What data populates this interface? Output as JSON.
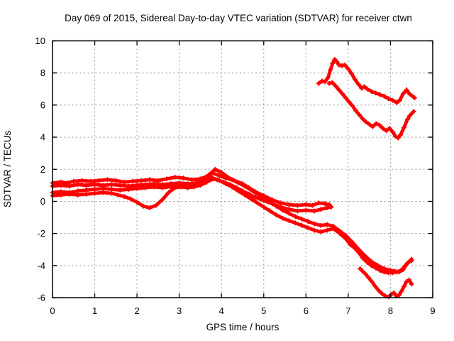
{
  "chart_data": {
    "type": "scatter",
    "title": "Day 069 of 2015, Sidereal Day-to-day VTEC variation (SDTVAR) for receiver ctwn",
    "xlabel": "GPS time / hours",
    "ylabel": "SDTVAR / TECUs",
    "xlim": [
      0,
      9
    ],
    "ylim": [
      -6,
      10
    ],
    "xticks": [
      0,
      1,
      2,
      3,
      4,
      5,
      6,
      7,
      8,
      9
    ],
    "yticks": [
      -6,
      -4,
      -2,
      0,
      2,
      4,
      6,
      8,
      10
    ],
    "grid": "dotted",
    "legend_position": "none",
    "marker": "plus",
    "series_color": "#ff0000",
    "grid_color": "#9c9c9c",
    "series": [
      {
        "name": "trace-1",
        "segments": [
          [
            [
              0,
              0.55
            ],
            [
              0.2,
              0.6
            ],
            [
              0.4,
              0.55
            ],
            [
              0.6,
              0.65
            ],
            [
              0.8,
              0.7
            ],
            [
              1,
              0.75
            ],
            [
              1.2,
              0.8
            ],
            [
              1.4,
              0.75
            ],
            [
              1.6,
              0.7
            ],
            [
              1.8,
              0.75
            ],
            [
              2,
              0.8
            ],
            [
              2.2,
              0.85
            ],
            [
              2.4,
              0.9
            ],
            [
              2.6,
              0.85
            ],
            [
              2.8,
              0.92
            ],
            [
              3,
              1
            ],
            [
              3.2,
              0.95
            ],
            [
              3.4,
              1.05
            ],
            [
              3.55,
              1.25
            ],
            [
              3.7,
              1.65
            ],
            [
              3.85,
              2.0
            ],
            [
              4,
              1.8
            ],
            [
              4.1,
              1.6
            ],
            [
              4.25,
              1.35
            ],
            [
              4.4,
              1.15
            ],
            [
              4.55,
              0.95
            ],
            [
              4.7,
              0.7
            ],
            [
              4.85,
              0.45
            ],
            [
              5,
              0.2
            ],
            [
              5.15,
              -0.05
            ],
            [
              5.3,
              -0.3
            ],
            [
              5.45,
              -0.55
            ],
            [
              5.6,
              -0.75
            ],
            [
              5.75,
              -0.95
            ],
            [
              5.9,
              -1.1
            ],
            [
              6.05,
              -1.25
            ],
            [
              6.2,
              -1.4
            ],
            [
              6.35,
              -1.5
            ],
            [
              6.5,
              -1.45
            ],
            [
              6.65,
              -1.55
            ],
            [
              6.8,
              -1.85
            ],
            [
              6.95,
              -2.15
            ],
            [
              7.1,
              -2.55
            ],
            [
              7.25,
              -3.0
            ],
            [
              7.4,
              -3.4
            ],
            [
              7.55,
              -3.75
            ],
            [
              7.7,
              -4.0
            ],
            [
              7.85,
              -4.2
            ],
            [
              8,
              -4.3
            ],
            [
              8.1,
              -4.35
            ],
            [
              8.2,
              -4.4
            ],
            [
              8.3,
              -4.25
            ],
            [
              8.4,
              -3.85
            ],
            [
              8.5,
              -3.6
            ]
          ]
        ]
      },
      {
        "name": "trace-2",
        "segments": [
          [
            [
              0,
              1.15
            ],
            [
              0.2,
              1.2
            ],
            [
              0.35,
              1.15
            ],
            [
              0.5,
              1.25
            ],
            [
              0.7,
              1.3
            ],
            [
              0.9,
              1.25
            ],
            [
              1.1,
              1.3
            ],
            [
              1.3,
              1.35
            ],
            [
              1.5,
              1.3
            ],
            [
              1.7,
              1.2
            ],
            [
              1.9,
              1.25
            ],
            [
              2.1,
              1.3
            ],
            [
              2.3,
              1.35
            ],
            [
              2.5,
              1.3
            ],
            [
              2.7,
              1.4
            ],
            [
              2.9,
              1.5
            ],
            [
              3.1,
              1.45
            ],
            [
              3.3,
              1.35
            ],
            [
              3.5,
              1.4
            ],
            [
              3.65,
              1.55
            ],
            [
              3.8,
              1.75
            ],
            [
              3.95,
              1.6
            ],
            [
              4.1,
              1.45
            ],
            [
              4.3,
              1.3
            ],
            [
              4.5,
              1.1
            ],
            [
              4.65,
              0.85
            ],
            [
              4.8,
              0.6
            ],
            [
              5,
              0.35
            ],
            [
              5.2,
              0.1
            ],
            [
              5.4,
              -0.1
            ],
            [
              5.6,
              -0.2
            ],
            [
              5.8,
              -0.25
            ],
            [
              6,
              -0.2
            ],
            [
              6.15,
              -0.25
            ],
            [
              6.3,
              -0.1
            ],
            [
              6.45,
              -0.15
            ],
            [
              6.55,
              -0.2
            ]
          ],
          [
            [
              6.3,
              7.35
            ],
            [
              6.38,
              7.5
            ],
            [
              6.45,
              7.45
            ],
            [
              6.52,
              7.7
            ],
            [
              6.58,
              8.2
            ],
            [
              6.63,
              8.6
            ],
            [
              6.68,
              8.85
            ],
            [
              6.73,
              8.7
            ],
            [
              6.78,
              8.5
            ],
            [
              6.85,
              8.45
            ],
            [
              6.92,
              8.5
            ],
            [
              7,
              8.25
            ],
            [
              7.08,
              7.95
            ],
            [
              7.16,
              7.6
            ],
            [
              7.24,
              7.3
            ],
            [
              7.32,
              7.05
            ],
            [
              7.38,
              7.15
            ],
            [
              7.45,
              7.0
            ],
            [
              7.55,
              6.85
            ],
            [
              7.65,
              6.75
            ],
            [
              7.75,
              6.65
            ],
            [
              7.85,
              6.55
            ],
            [
              7.95,
              6.4
            ],
            [
              8.05,
              6.3
            ],
            [
              8.15,
              6.15
            ],
            [
              8.22,
              6.3
            ],
            [
              8.3,
              6.7
            ],
            [
              8.38,
              6.95
            ],
            [
              8.45,
              6.7
            ],
            [
              8.57,
              6.45
            ]
          ]
        ]
      },
      {
        "name": "trace-3",
        "segments": [
          [
            [
              0,
              0.95
            ],
            [
              0.2,
              1.0
            ],
            [
              0.4,
              0.95
            ],
            [
              0.6,
              1.05
            ],
            [
              0.8,
              1.0
            ],
            [
              1,
              1.05
            ],
            [
              1.2,
              1.0
            ],
            [
              1.4,
              1.05
            ],
            [
              1.6,
              1.0
            ],
            [
              1.8,
              0.95
            ],
            [
              2,
              1.0
            ],
            [
              2.2,
              1.05
            ],
            [
              2.4,
              1.1
            ],
            [
              2.6,
              1.05
            ],
            [
              2.8,
              1.1
            ],
            [
              3,
              1.15
            ],
            [
              3.2,
              1.1
            ],
            [
              3.4,
              1.15
            ],
            [
              3.6,
              1.3
            ],
            [
              3.75,
              1.5
            ],
            [
              3.9,
              1.35
            ],
            [
              4.05,
              1.2
            ],
            [
              4.2,
              1.05
            ],
            [
              4.35,
              0.85
            ],
            [
              4.5,
              0.65
            ],
            [
              4.65,
              0.45
            ],
            [
              4.8,
              0.25
            ],
            [
              5,
              0.05
            ],
            [
              5.2,
              -0.15
            ],
            [
              5.4,
              -0.35
            ],
            [
              5.6,
              -0.5
            ],
            [
              5.8,
              -0.6
            ],
            [
              6,
              -0.55
            ],
            [
              6.2,
              -0.6
            ],
            [
              6.35,
              -0.5
            ],
            [
              6.5,
              -0.4
            ],
            [
              6.6,
              -0.35
            ]
          ],
          [
            [
              6.55,
              7.35
            ],
            [
              6.62,
              7.4
            ],
            [
              6.7,
              7.2
            ],
            [
              6.78,
              6.95
            ],
            [
              6.86,
              6.7
            ],
            [
              6.94,
              6.45
            ],
            [
              7.02,
              6.2
            ],
            [
              7.1,
              5.95
            ],
            [
              7.18,
              5.65
            ],
            [
              7.26,
              5.4
            ],
            [
              7.34,
              5.15
            ],
            [
              7.42,
              4.95
            ],
            [
              7.5,
              4.8
            ],
            [
              7.58,
              4.65
            ],
            [
              7.66,
              4.85
            ],
            [
              7.74,
              4.75
            ],
            [
              7.82,
              4.55
            ],
            [
              7.9,
              4.4
            ],
            [
              7.98,
              4.55
            ],
            [
              8.06,
              4.3
            ],
            [
              8.12,
              4.05
            ],
            [
              8.18,
              3.95
            ],
            [
              8.24,
              4.15
            ],
            [
              8.32,
              4.6
            ],
            [
              8.4,
              5.1
            ],
            [
              8.46,
              5.35
            ],
            [
              8.55,
              5.6
            ]
          ]
        ]
      },
      {
        "name": "trace-4",
        "segments": [
          [
            [
              0,
              0.35
            ],
            [
              0.2,
              0.4
            ],
            [
              0.4,
              0.45
            ],
            [
              0.6,
              0.4
            ],
            [
              0.8,
              0.45
            ],
            [
              1,
              0.5
            ],
            [
              1.2,
              0.55
            ],
            [
              1.4,
              0.5
            ],
            [
              1.55,
              0.4
            ],
            [
              1.7,
              0.3
            ],
            [
              1.85,
              0.15
            ],
            [
              2,
              -0.05
            ],
            [
              2.15,
              -0.3
            ],
            [
              2.3,
              -0.4
            ],
            [
              2.45,
              -0.25
            ],
            [
              2.6,
              0.1
            ],
            [
              2.75,
              0.55
            ],
            [
              2.9,
              0.85
            ],
            [
              3.05,
              0.9
            ],
            [
              3.2,
              0.85
            ],
            [
              3.35,
              0.9
            ],
            [
              3.5,
              1.0
            ],
            [
              3.65,
              1.2
            ],
            [
              3.8,
              1.4
            ],
            [
              3.95,
              1.3
            ],
            [
              4.1,
              1.1
            ],
            [
              4.25,
              0.9
            ],
            [
              4.4,
              0.65
            ],
            [
              4.55,
              0.4
            ],
            [
              4.7,
              0.15
            ],
            [
              4.85,
              -0.1
            ],
            [
              5,
              -0.35
            ],
            [
              5.15,
              -0.6
            ],
            [
              5.3,
              -0.85
            ],
            [
              5.45,
              -1.05
            ],
            [
              5.6,
              -1.2
            ],
            [
              5.75,
              -1.35
            ],
            [
              5.9,
              -1.5
            ],
            [
              6.05,
              -1.65
            ],
            [
              6.2,
              -1.8
            ],
            [
              6.35,
              -1.9
            ],
            [
              6.5,
              -1.8
            ],
            [
              6.65,
              -1.7
            ],
            [
              6.8,
              -2.0
            ],
            [
              6.95,
              -2.35
            ],
            [
              7.05,
              -2.7
            ],
            [
              7.15,
              -2.9
            ],
            [
              7.25,
              -3.2
            ],
            [
              7.35,
              -3.55
            ],
            [
              7.45,
              -3.8
            ],
            [
              7.55,
              -4.0
            ],
            [
              7.65,
              -4.15
            ],
            [
              7.75,
              -4.3
            ],
            [
              7.85,
              -4.4
            ],
            [
              7.95,
              -4.45
            ],
            [
              8.05,
              -4.45
            ],
            [
              8.15,
              -4.4
            ],
            [
              8.25,
              -4.3
            ],
            [
              8.35,
              -4.0
            ],
            [
              8.45,
              -3.75
            ],
            [
              8.5,
              -3.7
            ]
          ]
        ]
      },
      {
        "name": "trace-5",
        "segments": [
          [
            [
              7.28,
              -4.2
            ],
            [
              7.34,
              -4.35
            ],
            [
              7.4,
              -4.5
            ],
            [
              7.48,
              -4.75
            ],
            [
              7.56,
              -5.0
            ],
            [
              7.64,
              -5.3
            ],
            [
              7.72,
              -5.55
            ],
            [
              7.8,
              -5.75
            ],
            [
              7.88,
              -5.9
            ],
            [
              7.96,
              -5.95
            ],
            [
              8.02,
              -5.8
            ],
            [
              8.08,
              -5.7
            ],
            [
              8.14,
              -5.9
            ],
            [
              8.2,
              -5.85
            ],
            [
              8.26,
              -5.6
            ],
            [
              8.32,
              -5.3
            ],
            [
              8.38,
              -5.0
            ],
            [
              8.44,
              -4.9
            ],
            [
              8.5,
              -5.15
            ]
          ]
        ]
      }
    ]
  }
}
